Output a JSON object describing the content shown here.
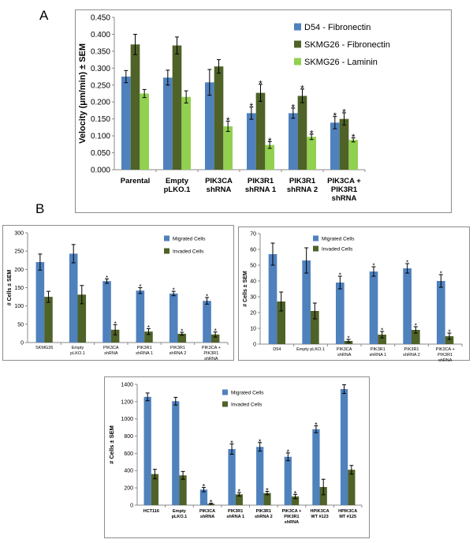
{
  "panel_labels": [
    "A",
    "B"
  ],
  "chart_data": [
    {
      "type": "bar",
      "id": "A",
      "ylabel": "Velocity (μm/min) ± SEM",
      "ylim": [
        0,
        0.45
      ],
      "yticks": [
        "0.000",
        "0.050",
        "0.100",
        "0.150",
        "0.200",
        "0.250",
        "0.300",
        "0.350",
        "0.400",
        "0.450"
      ],
      "categories": [
        [
          "Parental"
        ],
        [
          "Empty",
          "pLKO.1"
        ],
        [
          "PIK3CA",
          "shRNA"
        ],
        [
          "PIK3R1",
          "shRNA 1"
        ],
        [
          "PIK3R1",
          "shRNA 2"
        ],
        [
          "PIK3CA +",
          "PIK3R1",
          "shRNA"
        ]
      ],
      "series": [
        {
          "name": "D54 - Fibronectin",
          "color": "#4f81bd",
          "values": [
            0.275,
            0.272,
            0.258,
            0.167,
            0.167,
            0.139
          ],
          "errors": [
            0.018,
            0.022,
            0.038,
            0.018,
            0.015,
            0.018
          ],
          "sig": [
            false,
            false,
            false,
            true,
            true,
            true
          ]
        },
        {
          "name": "SKMG26 - Fibronectin",
          "color": "#4f6228",
          "values": [
            0.37,
            0.367,
            0.305,
            0.227,
            0.218,
            0.15
          ],
          "errors": [
            0.03,
            0.025,
            0.02,
            0.025,
            0.02,
            0.018
          ],
          "sig": [
            false,
            false,
            false,
            true,
            true,
            true
          ]
        },
        {
          "name": "SKMG26 - Laminin",
          "color": "#92d050",
          "values": [
            0.225,
            0.215,
            0.128,
            0.073,
            0.097,
            0.088
          ],
          "errors": [
            0.012,
            0.018,
            0.015,
            0.01,
            0.008,
            0.006
          ],
          "sig": [
            false,
            false,
            true,
            true,
            true,
            true
          ]
        }
      ]
    },
    {
      "type": "bar",
      "id": "B1",
      "ylabel": "# Cells ± SEM",
      "ylim": [
        0,
        300
      ],
      "yticks": [
        "0",
        "50",
        "100",
        "150",
        "200",
        "250",
        "300"
      ],
      "categories": [
        [
          "SKMG26"
        ],
        [
          "Empty",
          "pLKO.1"
        ],
        [
          "PIK3CA",
          "shRNA"
        ],
        [
          "PIK3R1",
          "shRNA 1"
        ],
        [
          "PIK3R1",
          "shRNA 2"
        ],
        [
          "PIK3CA +",
          "PIK3R1",
          "shRNA"
        ]
      ],
      "series": [
        {
          "name": "Migrated Cells",
          "color": "#4f81bd",
          "values": [
            220,
            243,
            168,
            142,
            134,
            114
          ],
          "errors": [
            22,
            25,
            6,
            8,
            6,
            9
          ],
          "sig": [
            false,
            false,
            true,
            true,
            true,
            true
          ]
        },
        {
          "name": "Invaded Cells",
          "color": "#4f6228",
          "values": [
            125,
            131,
            35,
            30,
            24,
            22
          ],
          "errors": [
            15,
            25,
            14,
            8,
            4,
            7
          ],
          "sig": [
            false,
            false,
            true,
            true,
            true,
            true
          ]
        }
      ]
    },
    {
      "type": "bar",
      "id": "B2",
      "ylabel": "# Cells ± SEM",
      "ylim": [
        0,
        70
      ],
      "yticks": [
        "0",
        "10",
        "20",
        "30",
        "40",
        "50",
        "60",
        "70"
      ],
      "categories": [
        [
          "D54"
        ],
        [
          "Empty pLKO.1"
        ],
        [
          "PIK3CA",
          "shRNA"
        ],
        [
          "PIK3R1",
          "shRNA 1"
        ],
        [
          "PIK3R1",
          "shRNA 2"
        ],
        [
          "PIK3CA +",
          "PIK3R1",
          "shRNA"
        ]
      ],
      "series": [
        {
          "name": "Migrated Cells",
          "color": "#4f81bd",
          "values": [
            57,
            53,
            39,
            46,
            48,
            40
          ],
          "errors": [
            7,
            8,
            4,
            3,
            3,
            4
          ],
          "sig": [
            false,
            false,
            true,
            true,
            true,
            true
          ]
        },
        {
          "name": "Invaded Cells",
          "color": "#4f6228",
          "values": [
            27,
            21,
            2,
            6,
            9,
            5
          ],
          "errors": [
            6,
            5,
            1,
            2,
            2,
            2
          ],
          "sig": [
            false,
            false,
            true,
            true,
            true,
            true
          ]
        }
      ]
    },
    {
      "type": "bar",
      "id": "B3",
      "ylabel": "# Cells ± SEM",
      "ylim": [
        0,
        1400
      ],
      "yticks": [
        "0",
        "200",
        "400",
        "600",
        "800",
        "1000",
        "1200",
        "1400"
      ],
      "categories": [
        [
          "HCT116"
        ],
        [
          "Empty",
          "pLKO.1"
        ],
        [
          "PIK3CA",
          "shRNA"
        ],
        [
          "PIK3R1",
          "shRNA 1"
        ],
        [
          "PIK3R1",
          "shRNA 2"
        ],
        [
          "PIK3CA +",
          "PIK3R1",
          "shRNA"
        ],
        [
          "HPIK3CA",
          "WT #123"
        ],
        [
          "HPIK3CA",
          "MT #125"
        ]
      ],
      "series": [
        {
          "name": "Migrated Cells",
          "color": "#4f81bd",
          "values": [
            1255,
            1205,
            180,
            650,
            675,
            560,
            880,
            1345
          ],
          "errors": [
            45,
            45,
            25,
            60,
            50,
            45,
            40,
            50
          ],
          "sig": [
            false,
            false,
            true,
            true,
            true,
            true,
            true,
            false
          ]
        },
        {
          "name": "Invaded Cells",
          "color": "#4f6228",
          "values": [
            360,
            345,
            15,
            125,
            140,
            100,
            210,
            410
          ],
          "errors": [
            55,
            45,
            8,
            20,
            20,
            25,
            90,
            50
          ],
          "sig": [
            false,
            false,
            true,
            true,
            true,
            true,
            false,
            false
          ]
        }
      ]
    }
  ]
}
